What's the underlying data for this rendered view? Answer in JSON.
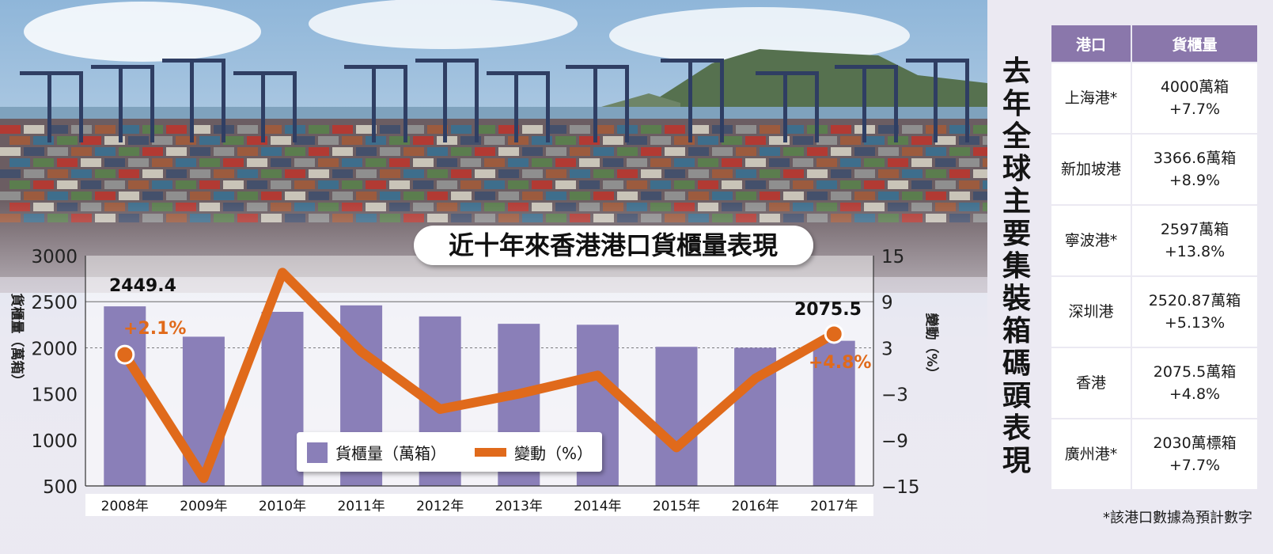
{
  "chart_data": {
    "type": "bar",
    "title": "近十年來香港港口貨櫃量表現",
    "categories": [
      "2008年",
      "2009年",
      "2010年",
      "2011年",
      "2012年",
      "2013年",
      "2014年",
      "2015年",
      "2016年",
      "2017年"
    ],
    "series": [
      {
        "name": "貨櫃量（萬箱）",
        "axis": "left",
        "type": "bar",
        "color": "#8a7fb8",
        "values": [
          2449.4,
          2120,
          2390,
          2460,
          2340,
          2260,
          2250,
          2010,
          2000,
          2075.5
        ]
      },
      {
        "name": "變動（%）",
        "axis": "right",
        "type": "line",
        "color": "#e06a1b",
        "values": [
          2.1,
          -14.0,
          12.8,
          2.5,
          -5.0,
          -3.0,
          -0.6,
          -10.0,
          -1.0,
          4.8
        ]
      }
    ],
    "ylabel": "貨櫃量（萬箱）",
    "y2label": "變動（%）",
    "ylim": [
      500,
      3000
    ],
    "y2lim": [
      -15,
      15
    ],
    "yticks": [
      "3000",
      "2500",
      "2000",
      "1500",
      "1000",
      "500"
    ],
    "y2ticks": [
      "15",
      "9",
      "3",
      "−3",
      "−9",
      "−15"
    ],
    "annotations": {
      "first_value": "2449.4",
      "first_change": "+2.1%",
      "last_value": "2075.5",
      "last_change": "+4.8%"
    },
    "legend": {
      "placement": "bottom-center",
      "bar_label": "貨櫃量（萬箱）",
      "line_label": "變動（%）"
    }
  },
  "side_title": "去年全球主要集裝箱碼頭表現",
  "ports_table": {
    "headers": [
      "港口",
      "貨櫃量"
    ],
    "rows": [
      {
        "port": "上海港*",
        "volume": "4000萬箱",
        "change": "+7.7%"
      },
      {
        "port": "新加坡港",
        "volume": "3366.6萬箱",
        "change": "+8.9%"
      },
      {
        "port": "寧波港*",
        "volume": "2597萬箱",
        "change": "+13.8%"
      },
      {
        "port": "深圳港",
        "volume": "2520.87萬箱",
        "change": "+5.13%"
      },
      {
        "port": "香港",
        "volume": "2075.5萬箱",
        "change": "+4.8%"
      },
      {
        "port": "廣州港*",
        "volume": "2030萬標箱",
        "change": "+7.7%"
      }
    ]
  },
  "footnote": "*該港口數據為預計數字"
}
